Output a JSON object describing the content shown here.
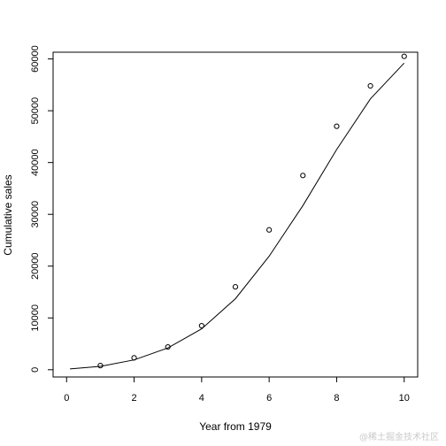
{
  "chart_data": {
    "type": "scatter",
    "title": "",
    "xlabel": "Year from 1979",
    "ylabel": "Cumulative sales",
    "xlim": [
      -0.4,
      10.4
    ],
    "ylim": [
      -1400,
      61300
    ],
    "x_ticks": [
      0,
      2,
      4,
      6,
      8,
      10
    ],
    "y_ticks": [
      0,
      10000,
      20000,
      30000,
      40000,
      50000,
      60000
    ],
    "grid": false,
    "series": [
      {
        "kind": "points",
        "marker": "open-circle",
        "x": [
          1,
          2,
          3,
          4,
          5,
          6,
          7,
          8,
          9,
          10
        ],
        "y": [
          800,
          2300,
          4400,
          8500,
          16000,
          27000,
          37500,
          47000,
          54800,
          60500
        ]
      },
      {
        "kind": "line",
        "x": [
          0.1,
          1,
          2,
          3,
          4,
          5,
          6,
          7,
          8,
          9,
          10
        ],
        "y": [
          150,
          650,
          1900,
          4200,
          7900,
          13700,
          21900,
          31700,
          42500,
          52300,
          59200
        ]
      }
    ]
  },
  "watermark": "@稀土掘金技术社区"
}
